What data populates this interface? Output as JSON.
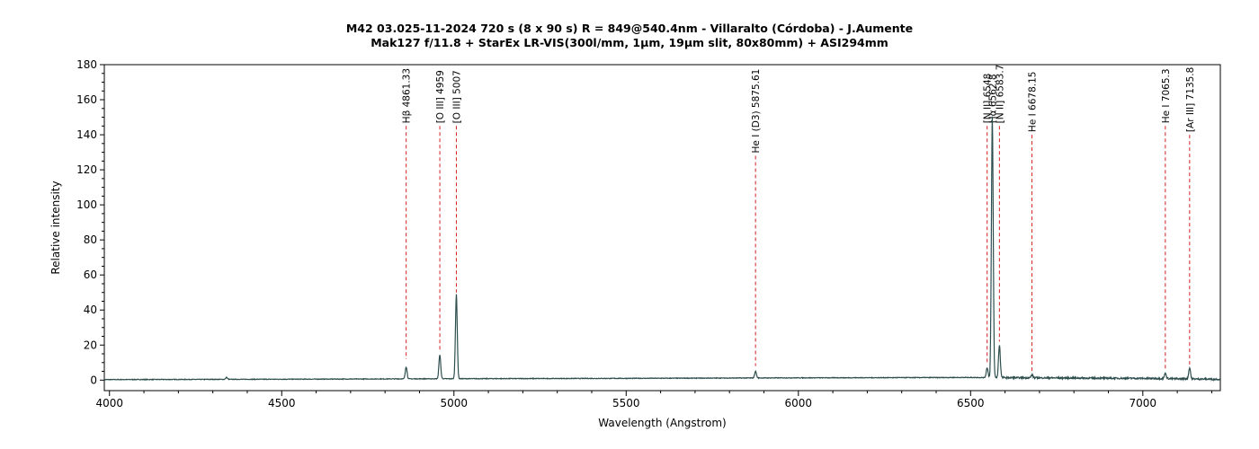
{
  "chart_data": {
    "type": "line",
    "title": "M42  03.025-11-2024  720 s (8 x 90 s)  R = 849@540.4nm - Villaralto (Córdoba) - J.Aumente",
    "subtitle": "Mak127 f/11.8 + StarEx LR-VIS(300l/mm, 1µm, 19µm slit, 80x80mm) + ASI294mm",
    "xlabel": "Wavelength (Angstrom)",
    "ylabel": "Relative intensity",
    "xlim": [
      3985,
      7225
    ],
    "ylim": [
      -6,
      180
    ],
    "x_ticks": [
      4000,
      4500,
      5000,
      5500,
      6000,
      6500,
      7000
    ],
    "y_ticks": [
      0,
      20,
      40,
      60,
      80,
      100,
      120,
      140,
      160,
      180
    ],
    "grid": false,
    "series": [
      {
        "color": "#2f4f4f",
        "continuum": [
          [
            3985,
            0.3
          ],
          [
            4500,
            0.5
          ],
          [
            5000,
            0.8
          ],
          [
            5500,
            1.0
          ],
          [
            6000,
            1.3
          ],
          [
            6500,
            1.5
          ],
          [
            6800,
            1.2
          ],
          [
            7000,
            1.0
          ],
          [
            7225,
            0.5
          ]
        ],
        "lines": [
          {
            "x": 4340,
            "y": 1.5
          },
          {
            "x": 4861.33,
            "y": 7.5
          },
          {
            "x": 4959,
            "y": 14.5
          },
          {
            "x": 5007,
            "y": 49
          },
          {
            "x": 5875.61,
            "y": 5
          },
          {
            "x": 6548,
            "y": 7
          },
          {
            "x": 6563,
            "y": 150
          },
          {
            "x": 6583.7,
            "y": 20
          },
          {
            "x": 6678.15,
            "y": 3
          },
          {
            "x": 7065.3,
            "y": 4
          },
          {
            "x": 7135.8,
            "y": 7
          }
        ]
      }
    ],
    "annotations": [
      {
        "label": "Hβ 4861.33",
        "x": 4861.33,
        "y_top": 145,
        "y_bottom": 12
      },
      {
        "label": "[O III] 4959",
        "x": 4959,
        "y_top": 145,
        "y_bottom": 17
      },
      {
        "label": "[O III] 5007",
        "x": 5007,
        "y_top": 145,
        "y_bottom": 50
      },
      {
        "label": "He I (D3) 5875.61",
        "x": 5875.61,
        "y_top": 128,
        "y_bottom": 8
      },
      {
        "label": "[N II] 6548",
        "x": 6548,
        "y_top": 145,
        "y_bottom": 9
      },
      {
        "label": "Hα 6562.8",
        "x": 6562.8,
        "y_top": 145,
        "y_bottom": 140
      },
      {
        "label": "[N II] 6583.7",
        "x": 6583.7,
        "y_top": 145,
        "y_bottom": 22
      },
      {
        "label": "He I 6678.15",
        "x": 6678.15,
        "y_top": 140,
        "y_bottom": 5
      },
      {
        "label": "He I 7065.3",
        "x": 7065.3,
        "y_top": 145,
        "y_bottom": 6
      },
      {
        "label": "[Ar III] 7135.8",
        "x": 7135.8,
        "y_top": 140,
        "y_bottom": 9
      }
    ],
    "colors": {
      "line": "#2f4f4f",
      "annotation": "#d62020",
      "axis": "#000000"
    }
  }
}
